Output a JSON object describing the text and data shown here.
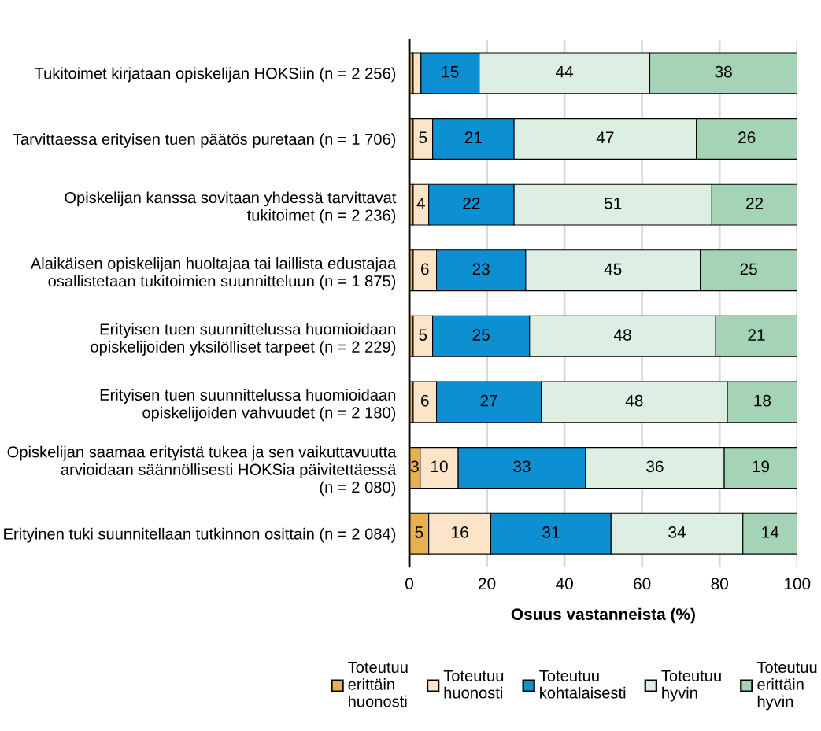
{
  "chart_data": {
    "type": "bar",
    "orientation": "horizontal",
    "stacked": true,
    "categories": [
      "Tukitoimet kirjataan opiskelijan HOKSiin (n = 2 256)",
      "Tarvittaessa erityisen tuen päätös puretaan (n = 1 706)",
      "Opiskelijan kanssa sovitaan yhdessä tarvittavat\ntukitoimet (n = 2 236)",
      "Alaikäisen opiskelijan huoltajaa tai laillista edustajaa\nosallistetaan tukitoimien suunnitteluun (n = 1 875)",
      "Erityisen tuen suunnittelussa huomioidaan\nopiskelijoiden yksilölliset tarpeet (n = 2 229)",
      "Erityisen tuen suunnittelussa huomioidaan\nopiskelijoiden vahvuudet (n = 2 180)",
      "Opiskelijan saamaa erityistä tukea ja sen vaikuttavuutta\narvioidaan säännöllisesti HOKSia päivitettäessä\n(n = 2 080)",
      "Erityinen tuki suunnitellaan tutkinnon osittain (n = 2 084)"
    ],
    "series": [
      {
        "name": "Toteutuu\nerittäin\nhuonosti",
        "color": "#e9b04f",
        "values": [
          1,
          1,
          1,
          1,
          1,
          1,
          2.8,
          5
        ],
        "value_labels": [
          null,
          null,
          null,
          null,
          null,
          null,
          "3",
          "5"
        ]
      },
      {
        "name": "Toteutuu\nhuonosti",
        "color": "#fce4c9",
        "values": [
          2,
          5,
          4,
          6,
          5,
          6,
          9.8,
          16
        ],
        "value_labels": [
          null,
          "5",
          "4",
          "6",
          "5",
          "6",
          "10",
          "16"
        ]
      },
      {
        "name": "Toteutuu\nkohtalaisesti",
        "color": "#0d90d1",
        "values": [
          15,
          21,
          22,
          23,
          25,
          27,
          32.8,
          31
        ],
        "value_labels": [
          "15",
          "21",
          "22",
          "23",
          "25",
          "27",
          "33",
          "31"
        ]
      },
      {
        "name": "Toteutuu\nhyvin",
        "color": "#ddeee2",
        "values": [
          44,
          47,
          51,
          45,
          48,
          48,
          35.8,
          34
        ],
        "value_labels": [
          "44",
          "47",
          "51",
          "45",
          "48",
          "48",
          "36",
          "34"
        ]
      },
      {
        "name": "Toteutuu\nerittäin\nhyvin",
        "color": "#a4d3b5",
        "values": [
          38,
          26,
          22,
          25,
          21,
          18,
          18.8,
          14
        ],
        "value_labels": [
          "38",
          "26",
          "22",
          "25",
          "21",
          "18",
          "19",
          "14"
        ]
      }
    ],
    "xlabel": "Osuus vastanneista (%)",
    "xlim": [
      0,
      100
    ],
    "xticks": [
      0,
      20,
      40,
      60,
      80,
      100
    ],
    "grid": "x",
    "legend": "bottom"
  }
}
